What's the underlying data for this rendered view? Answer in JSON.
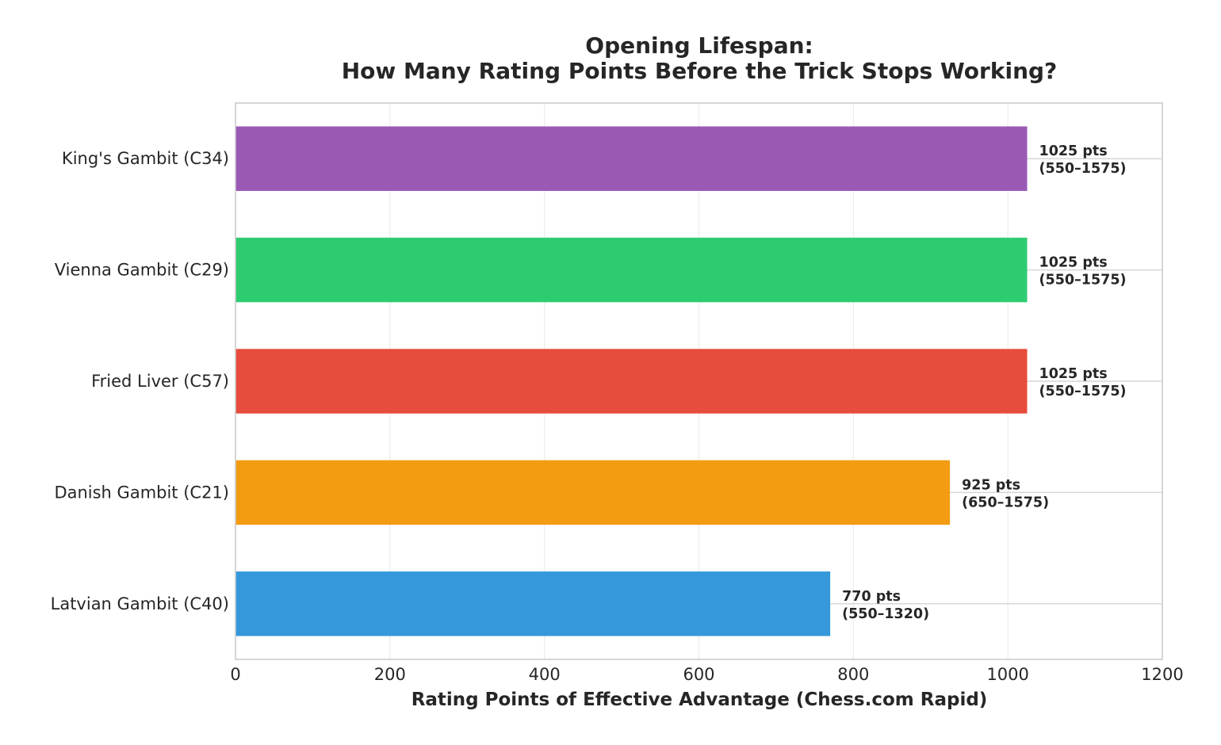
{
  "chart_data": {
    "type": "bar",
    "orientation": "horizontal",
    "title_lines": [
      "Opening Lifespan:",
      "How Many Rating Points Before the Trick Stops Working?"
    ],
    "xlabel": "Rating Points of Effective Advantage (Chess.com Rapid)",
    "ylabel": "",
    "xlim": [
      0,
      1200
    ],
    "xticks": [
      "0",
      "200",
      "400",
      "600",
      "800",
      "1000",
      "1200"
    ],
    "grid": "vertical",
    "categories": [
      "King's Gambit (C34)",
      "Vienna Gambit (C29)",
      "Fried Liver (C57)",
      "Danish Gambit (C21)",
      "Latvian Gambit (C40)"
    ],
    "values": [
      1025,
      1025,
      1025,
      925,
      770
    ],
    "ranges": [
      [
        550,
        1575
      ],
      [
        550,
        1575
      ],
      [
        550,
        1575
      ],
      [
        650,
        1575
      ],
      [
        550,
        1320
      ]
    ],
    "value_labels": [
      "1025 pts",
      "1025 pts",
      "1025 pts",
      "925 pts",
      "770 pts"
    ],
    "range_labels": [
      "(550–1575)",
      "(550–1575)",
      "(550–1575)",
      "(650–1575)",
      "(550–1320)"
    ],
    "colors": [
      "#9b59b6",
      "#2ecc71",
      "#e74c3c",
      "#f39c12",
      "#3498db"
    ]
  }
}
